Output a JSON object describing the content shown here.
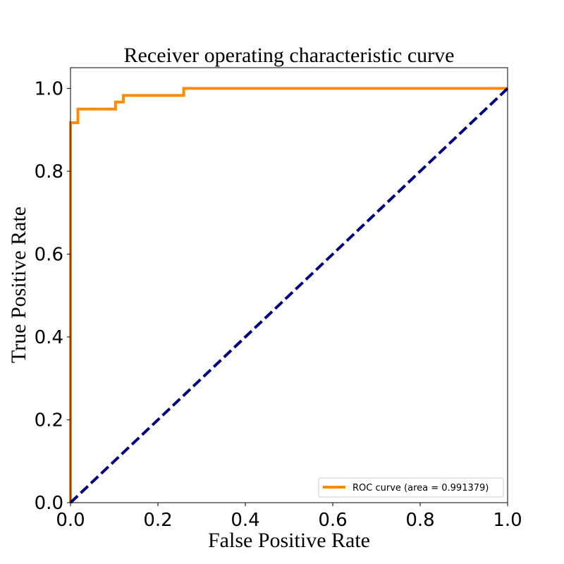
{
  "chart_data": {
    "type": "line",
    "title": "Receiver operating characteristic curve",
    "xlabel": "False Positive Rate",
    "ylabel": "True Positive Rate",
    "xlim": [
      0.0,
      1.0
    ],
    "ylim": [
      0.0,
      1.05
    ],
    "xticks": [
      "0.0",
      "0.2",
      "0.4",
      "0.6",
      "0.8",
      "1.0"
    ],
    "yticks": [
      "0.0",
      "0.2",
      "0.4",
      "0.6",
      "0.8",
      "1.0"
    ],
    "grid": false,
    "legend_position": "lower-right",
    "series": [
      {
        "name": "ROC curve (area = 0.991379)",
        "color": "#ff8c00",
        "style": "solid",
        "x": [
          0.0,
          0.0,
          0.017,
          0.017,
          0.103,
          0.103,
          0.121,
          0.121,
          0.259,
          0.259,
          1.0
        ],
        "y": [
          0.0,
          0.917,
          0.917,
          0.95,
          0.95,
          0.967,
          0.967,
          0.983,
          0.983,
          1.0,
          1.0
        ]
      },
      {
        "color": "#000080",
        "style": "dashed",
        "x": [
          0.0,
          1.0
        ],
        "y": [
          0.0,
          1.0
        ]
      }
    ]
  }
}
